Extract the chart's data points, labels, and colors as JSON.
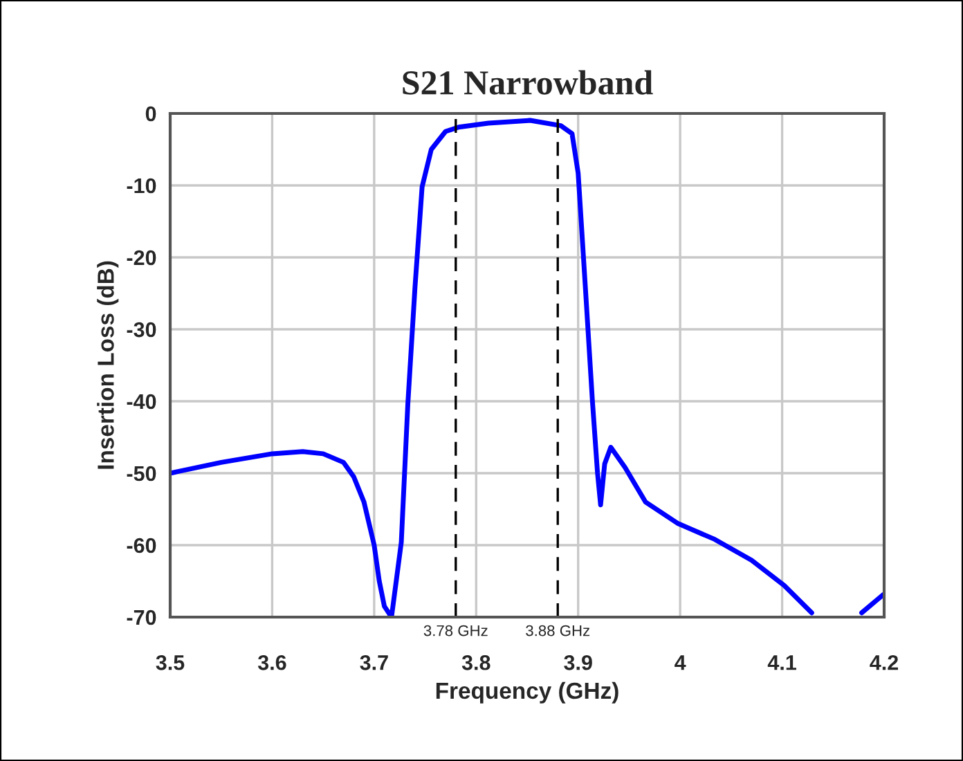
{
  "chart_data": {
    "type": "line",
    "title": "S21 Narrowband",
    "xlabel": "Frequency (GHz)",
    "ylabel": "Insertion Loss (dB)",
    "xlim": [
      3.5,
      4.2
    ],
    "xticks": [
      3.5,
      3.6,
      3.7,
      3.8,
      3.9,
      4,
      4.1,
      4.2
    ],
    "ylim": [
      -70,
      0
    ],
    "yticks": [
      -70,
      -60,
      -50,
      -40,
      -30,
      -20,
      -10,
      0
    ],
    "grid": true,
    "line_style": "solid",
    "marker": "none",
    "series": [
      {
        "color": "#0000ff",
        "x": [
          3.5,
          3.55,
          3.6,
          3.63,
          3.65,
          3.67,
          3.68,
          3.69,
          3.7,
          3.705,
          3.71,
          3.717,
          3.7266,
          3.733,
          3.74,
          3.747,
          3.756,
          3.77,
          3.783,
          3.812,
          3.853,
          3.883,
          3.894,
          3.9,
          3.907,
          3.914,
          3.919,
          3.922,
          3.926,
          3.932,
          3.946,
          3.966,
          3.998,
          4.034,
          4.07,
          4.102,
          4.129,
          4.15,
          4.178,
          4.199
        ],
        "values": [
          -50,
          -48.5,
          -47.3,
          -47,
          -47.3,
          -48.5,
          -50.5,
          -54,
          -60,
          -65,
          -68.5,
          -70,
          -59.6,
          -40.4,
          -24.2,
          -10.2,
          -5,
          -2.5,
          -1.9,
          -1.35,
          -0.96,
          -1.7,
          -2.8,
          -8.3,
          -24,
          -40,
          -50,
          -54.4,
          -48.7,
          -46.4,
          -49.2,
          -54,
          -57,
          -59.2,
          -62.1,
          -65.6,
          -69.4,
          null,
          -69.4,
          -66.9
        ]
      }
    ],
    "ref_lines": [
      {
        "axis": "x",
        "value": 3.78,
        "label": "3.78 GHz",
        "color": "#000000",
        "line_style": "dashed"
      },
      {
        "axis": "x",
        "value": 3.88,
        "label": "3.88 GHz",
        "color": "#000000",
        "line_style": "dashed"
      }
    ]
  }
}
